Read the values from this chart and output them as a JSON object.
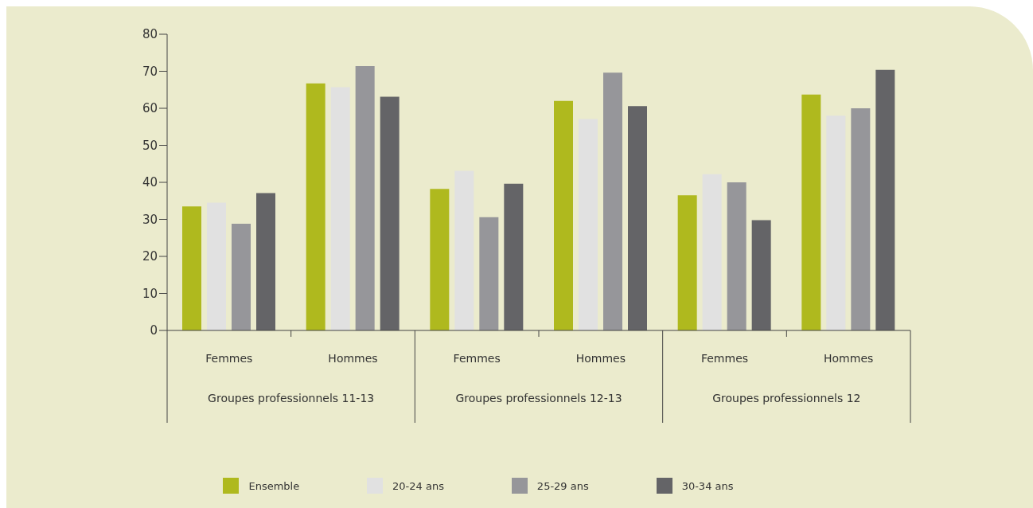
{
  "chart_data": {
    "type": "bar",
    "categories": [
      "Femmes",
      "Hommes",
      "Femmes",
      "Hommes",
      "Femmes",
      "Hommes"
    ],
    "annotations": [
      "Groupes professionnels 11-13",
      "Groupes professionnels 12-13",
      "Groupes professionnels 12"
    ],
    "series": [
      {
        "name": "Ensemble",
        "color": "#afb91e",
        "values": [
          33.5,
          66.7,
          38.2,
          62.0,
          36.5,
          63.7
        ]
      },
      {
        "name": "20-24 ans",
        "color": "#e1e1e1",
        "values": [
          34.5,
          65.7,
          43.1,
          57.1,
          42.2,
          58.0
        ]
      },
      {
        "name": "25-29 ans",
        "color": "#96969a",
        "values": [
          28.8,
          71.4,
          30.6,
          69.6,
          40.0,
          60.0
        ]
      },
      {
        "name": "30-34 ans",
        "color": "#646467",
        "values": [
          37.1,
          63.1,
          39.6,
          60.6,
          29.8,
          70.4
        ]
      }
    ],
    "ylim": [
      0,
      80
    ],
    "yticks": [
      0,
      10,
      20,
      30,
      40,
      50,
      60,
      70,
      80
    ],
    "grid": false,
    "legend": "bottom"
  }
}
